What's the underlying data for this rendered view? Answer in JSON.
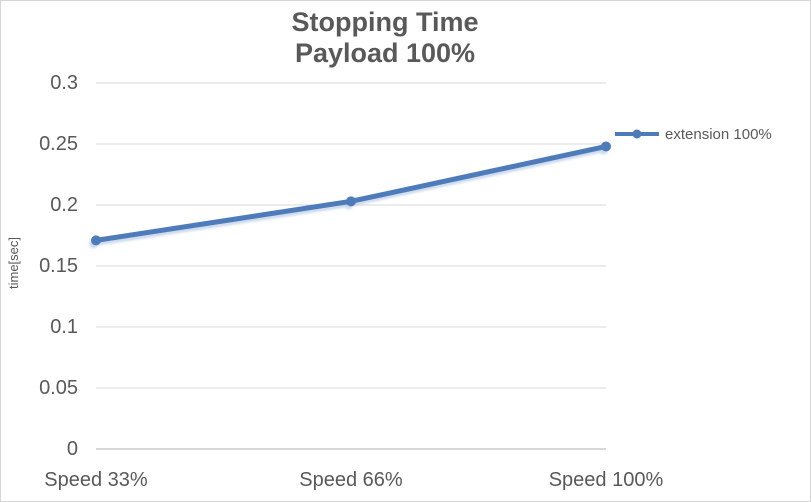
{
  "chart_data": {
    "type": "line",
    "title": "Stopping Time",
    "subtitle": "Payload 100%",
    "ylabel": "time[sec]",
    "xlabel": "",
    "categories": [
      "Speed 33%",
      "Speed 66%",
      "Speed 100%"
    ],
    "series": [
      {
        "name": "extension 100%",
        "values": [
          0.171,
          0.203,
          0.248
        ],
        "color": "#4e7cbb",
        "marker": "circle"
      }
    ],
    "ylim": [
      0,
      0.3
    ],
    "yticks": [
      0,
      0.05,
      0.1,
      0.15,
      0.2,
      0.25,
      0.3
    ],
    "ytick_labels": [
      "0",
      "0.05",
      "0.1",
      "0.15",
      "0.2",
      "0.25",
      "0.3"
    ],
    "grid": true,
    "legend_position": "right",
    "colors": {
      "text": "#595959",
      "gridline": "#d9d9d9",
      "axis": "#cccccc",
      "shadow": "#a3bcde",
      "background": "#ffffff",
      "frame_border": "#d6d6d6"
    }
  }
}
